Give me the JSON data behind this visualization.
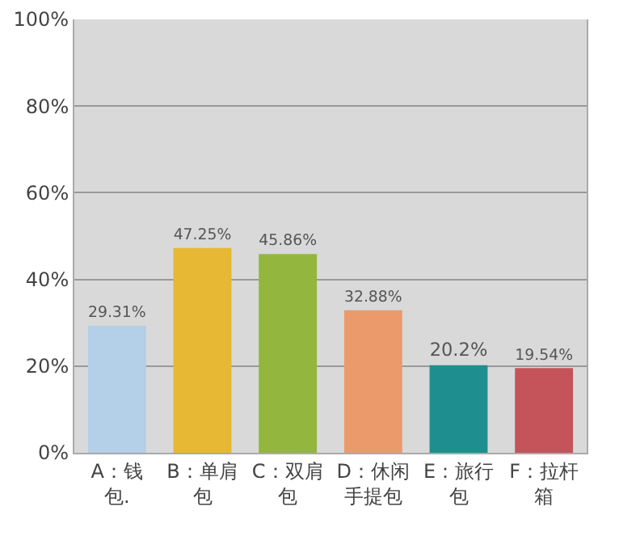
{
  "chart_data": {
    "type": "bar",
    "categories": [
      "A：钱包.",
      "B：单肩包",
      "C：双肩包",
      "D：休闲手提包",
      "E：旅行包",
      "F：拉杆箱"
    ],
    "values": [
      29.31,
      47.25,
      45.86,
      32.88,
      20.2,
      19.54
    ],
    "colors": [
      "#b4cfe8",
      "#e6b834",
      "#92b63e",
      "#eb9a6c",
      "#1f8e8e",
      "#c4545a"
    ],
    "value_labels": [
      "29.31%",
      "47.25%",
      "45.86%",
      "32.88%",
      "20.2%",
      "19.54%"
    ],
    "ylim": [
      0,
      100
    ],
    "yticks": [
      {
        "value": 0,
        "label": "0%"
      },
      {
        "value": 20,
        "label": "20%"
      },
      {
        "value": 40,
        "label": "40%"
      },
      {
        "value": 60,
        "label": "60%"
      },
      {
        "value": 80,
        "label": "80%"
      },
      {
        "value": 100,
        "label": "100%"
      }
    ],
    "grid": "y"
  }
}
